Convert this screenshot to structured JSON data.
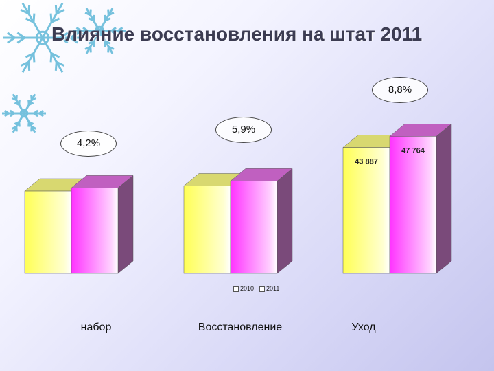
{
  "title": "Влияние восстановления на штат 2011",
  "chart_data": {
    "type": "bar",
    "categories": [
      "набор",
      "Восстановление",
      "Уход"
    ],
    "series": [
      {
        "name": "2010",
        "values": [
          null,
          null,
          43887
        ],
        "color": "#ffff60"
      },
      {
        "name": "2011",
        "values": [
          null,
          null,
          47764
        ],
        "color": "#ff40ff"
      }
    ],
    "value_labels": [
      "43 887",
      "47 764"
    ],
    "percent_labels": [
      "4,2%",
      "5,9%",
      "8,8%"
    ],
    "legend": [
      "2010",
      "2011"
    ],
    "legend_position": "bottom"
  }
}
